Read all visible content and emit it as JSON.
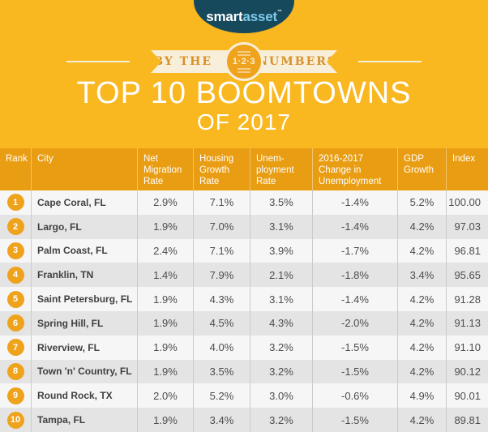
{
  "logo": {
    "brand_prefix": "smart",
    "brand_suffix": "asset",
    "trademark": "™"
  },
  "banner": {
    "left_text": "BY THE",
    "badge_text": "1·2·3",
    "right_text": "NUMBERS"
  },
  "title": {
    "line1": "TOP 10 BOOMTOWNS",
    "line2": "OF 2017"
  },
  "table": {
    "columns": [
      "Rank",
      "City",
      "Net Migration Rate",
      "Housing Growth Rate",
      "Unem-ployment Rate",
      "2016-2017 Change in Unemployment",
      "GDP Growth",
      "Index"
    ],
    "rows": [
      {
        "rank": "1",
        "city": "Cape Coral, FL",
        "net_migration": "2.9%",
        "housing_growth": "7.1%",
        "unemployment": "3.5%",
        "unemployment_change": "-1.4%",
        "gdp_growth": "5.2%",
        "index": "100.00"
      },
      {
        "rank": "2",
        "city": "Largo, FL",
        "net_migration": "1.9%",
        "housing_growth": "7.0%",
        "unemployment": "3.1%",
        "unemployment_change": "-1.4%",
        "gdp_growth": "4.2%",
        "index": "97.03"
      },
      {
        "rank": "3",
        "city": "Palm Coast, FL",
        "net_migration": "2.4%",
        "housing_growth": "7.1%",
        "unemployment": "3.9%",
        "unemployment_change": "-1.7%",
        "gdp_growth": "4.2%",
        "index": "96.81"
      },
      {
        "rank": "4",
        "city": "Franklin, TN",
        "net_migration": "1.4%",
        "housing_growth": "7.9%",
        "unemployment": "2.1%",
        "unemployment_change": "-1.8%",
        "gdp_growth": "3.4%",
        "index": "95.65"
      },
      {
        "rank": "5",
        "city": "Saint Petersburg, FL",
        "net_migration": "1.9%",
        "housing_growth": "4.3%",
        "unemployment": "3.1%",
        "unemployment_change": "-1.4%",
        "gdp_growth": "4.2%",
        "index": "91.28"
      },
      {
        "rank": "6",
        "city": "Spring Hill, FL",
        "net_migration": "1.9%",
        "housing_growth": "4.5%",
        "unemployment": "4.3%",
        "unemployment_change": "-2.0%",
        "gdp_growth": "4.2%",
        "index": "91.13"
      },
      {
        "rank": "7",
        "city": "Riverview, FL",
        "net_migration": "1.9%",
        "housing_growth": "4.0%",
        "unemployment": "3.2%",
        "unemployment_change": "-1.5%",
        "gdp_growth": "4.2%",
        "index": "91.10"
      },
      {
        "rank": "8",
        "city": "Town 'n' Country, FL",
        "net_migration": "1.9%",
        "housing_growth": "3.5%",
        "unemployment": "3.2%",
        "unemployment_change": "-1.5%",
        "gdp_growth": "4.2%",
        "index": "90.12"
      },
      {
        "rank": "9",
        "city": "Round Rock, TX",
        "net_migration": "2.0%",
        "housing_growth": "5.2%",
        "unemployment": "3.0%",
        "unemployment_change": "-0.6%",
        "gdp_growth": "4.9%",
        "index": "90.01"
      },
      {
        "rank": "10",
        "city": "Tampa, FL",
        "net_migration": "1.9%",
        "housing_growth": "3.4%",
        "unemployment": "3.2%",
        "unemployment_change": "-1.5%",
        "gdp_growth": "4.2%",
        "index": "89.81"
      }
    ]
  },
  "chart_data": {
    "type": "table",
    "title": "Top 10 Boomtowns of 2017",
    "columns": [
      "Rank",
      "City",
      "Net Migration Rate (%)",
      "Housing Growth Rate (%)",
      "Unemployment Rate (%)",
      "2016-2017 Change in Unemployment (%)",
      "GDP Growth (%)",
      "Index"
    ],
    "rows": [
      [
        1,
        "Cape Coral, FL",
        2.9,
        7.1,
        3.5,
        -1.4,
        5.2,
        100.0
      ],
      [
        2,
        "Largo, FL",
        1.9,
        7.0,
        3.1,
        -1.4,
        4.2,
        97.03
      ],
      [
        3,
        "Palm Coast, FL",
        2.4,
        7.1,
        3.9,
        -1.7,
        4.2,
        96.81
      ],
      [
        4,
        "Franklin, TN",
        1.4,
        7.9,
        2.1,
        -1.8,
        3.4,
        95.65
      ],
      [
        5,
        "Saint Petersburg, FL",
        1.9,
        4.3,
        3.1,
        -1.4,
        4.2,
        91.28
      ],
      [
        6,
        "Spring Hill, FL",
        1.9,
        4.5,
        4.3,
        -2.0,
        4.2,
        91.13
      ],
      [
        7,
        "Riverview, FL",
        1.9,
        4.0,
        3.2,
        -1.5,
        4.2,
        91.1
      ],
      [
        8,
        "Town 'n' Country, FL",
        1.9,
        3.5,
        3.2,
        -1.5,
        4.2,
        90.12
      ],
      [
        9,
        "Round Rock, TX",
        2.0,
        5.2,
        3.0,
        -0.6,
        4.9,
        90.01
      ],
      [
        10,
        "Tampa, FL",
        1.9,
        3.4,
        3.2,
        -1.5,
        4.2,
        89.81
      ]
    ]
  },
  "colors": {
    "yellow": "#F9B720",
    "orange": "#E99D12",
    "badge-orange": "#EFA31C",
    "navy": "#17495D",
    "logo-blue": "#7FC9E8",
    "cream": "#F7EFDA",
    "ribbon-text": "#D9902A",
    "row-light": "#F6F6F6",
    "row-dark": "#E4E4E4",
    "cell-text": "#4D4D4F",
    "divider": "#CBCBCB"
  }
}
